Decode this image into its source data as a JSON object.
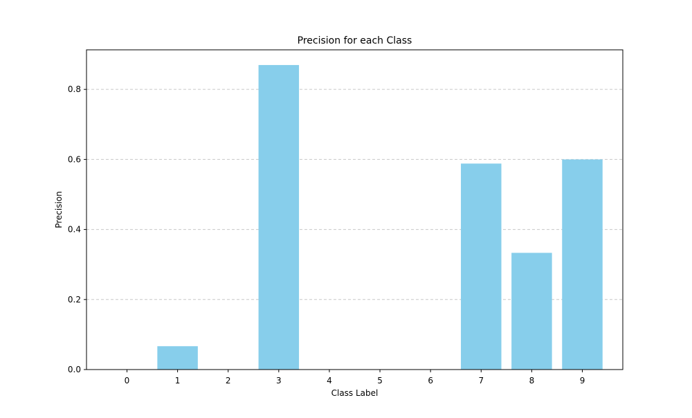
{
  "chart_data": {
    "type": "bar",
    "title": "Precision for each Class",
    "xlabel": "Class Label",
    "ylabel": "Precision",
    "categories": [
      "0",
      "1",
      "2",
      "3",
      "4",
      "5",
      "6",
      "7",
      "8",
      "9"
    ],
    "values": [
      0.0,
      0.0667,
      0.0,
      0.8696,
      0.0,
      0.0,
      0.0,
      0.5882,
      0.3333,
      0.6
    ],
    "ylim": [
      0,
      0.913
    ],
    "yticks": [
      0.0,
      0.2,
      0.4,
      0.6,
      0.8
    ],
    "ytick_labels": [
      "0.0",
      "0.2",
      "0.4",
      "0.6",
      "0.8"
    ],
    "grid": "y-dashed",
    "bar_color": "#87CEEB",
    "grid_color": "#c8c8c8"
  }
}
